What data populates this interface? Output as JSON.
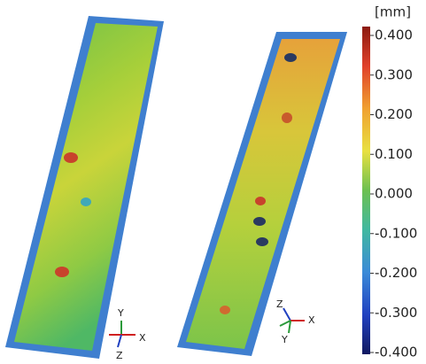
{
  "colorbar": {
    "unit": "[mm]",
    "labels": [
      "0.400",
      "0.300",
      "0.200",
      "0.100",
      "0.000",
      "-0.100",
      "-0.200",
      "-0.300",
      "-0.400"
    ]
  },
  "triads": [
    {
      "labels": [
        "Y",
        "X",
        "Z"
      ]
    },
    {
      "labels": [
        "Z",
        "X",
        "Y"
      ]
    }
  ]
}
